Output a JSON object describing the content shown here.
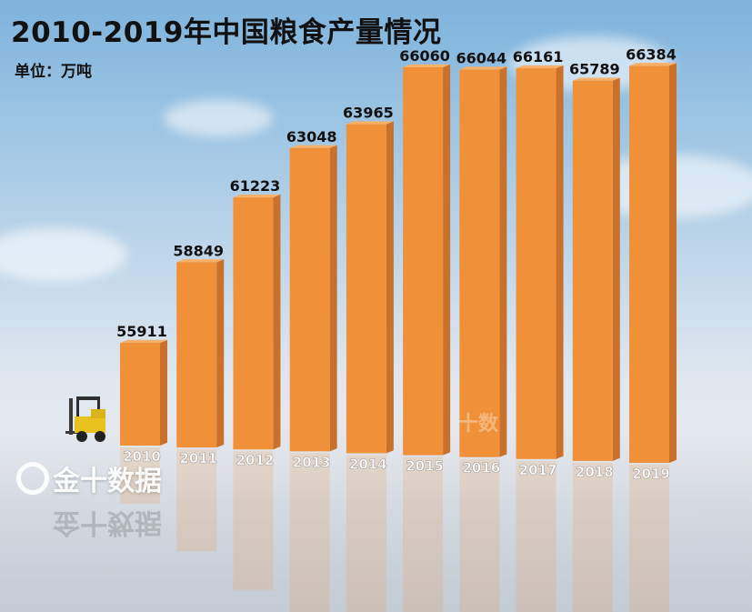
{
  "title": "2010-2019年中国粮食产量情况",
  "unit": "单位：万吨",
  "logo_text": "金十数据",
  "watermark_text": "十数",
  "colors": {
    "bar_front": "#f0913a",
    "bar_side": "#c9702a",
    "bar_top": "#f7b06a",
    "label": "#111111",
    "tick": "#ffffff"
  },
  "chart_data": {
    "type": "bar",
    "title": "2010-2019年中国粮食产量情况",
    "ylabel": "单位：万吨",
    "xlabel": "",
    "categories": [
      "2010",
      "2011",
      "2012",
      "2013",
      "2014",
      "2015",
      "2016",
      "2017",
      "2018",
      "2019"
    ],
    "values": [
      55911,
      58849,
      61223,
      63048,
      63965,
      66060,
      66044,
      66161,
      65789,
      66384
    ],
    "grid": false,
    "legend": "none"
  }
}
